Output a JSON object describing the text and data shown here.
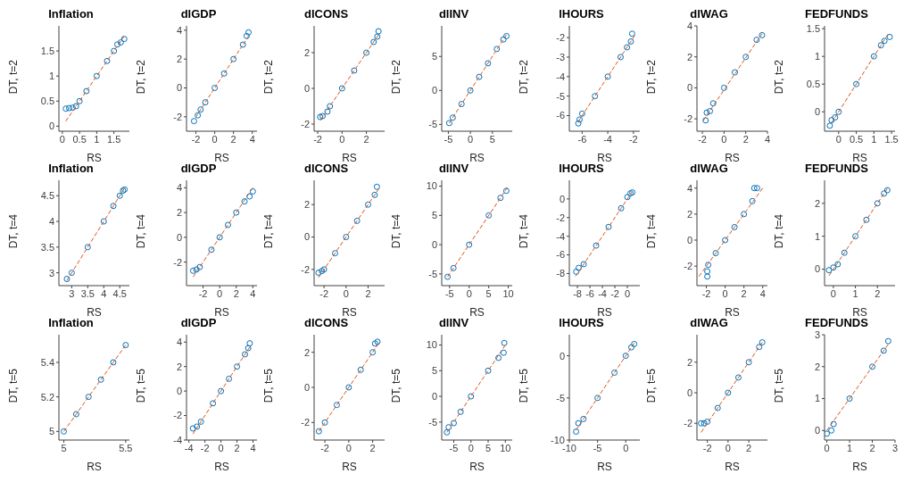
{
  "chart_data": [
    {
      "type": "scatter",
      "title": "Inflation",
      "xlabel": "RS",
      "ylabel": "DT, t=2",
      "xlim": [
        -0.1,
        1.95
      ],
      "ylim": [
        -0.1,
        2
      ],
      "xticks": [
        0,
        0.5,
        1,
        1.5
      ],
      "yticks": [
        0,
        0.5,
        1,
        1.5
      ],
      "marker": "circle",
      "series": [
        {
          "color": "#0072bd",
          "x": [
            0.1,
            0.2,
            0.3,
            0.4,
            0.5,
            0.7,
            1,
            1.3,
            1.5,
            1.6,
            1.7,
            1.8
          ],
          "values": [
            0.35,
            0.36,
            0.37,
            0.4,
            0.5,
            0.7,
            1,
            1.3,
            1.5,
            1.63,
            1.67,
            1.74
          ]
        },
        {
          "type": "line",
          "marker": "none",
          "line_style": "dashed",
          "color": "#d95319",
          "x": [
            0.1,
            1.8
          ],
          "values": [
            0.1,
            1.8
          ]
        }
      ]
    },
    {
      "type": "scatter",
      "title": "dlGDP",
      "xlabel": "RS",
      "ylabel": "DT, t=2",
      "xlim": [
        -3,
        4.5
      ],
      "ylim": [
        -3,
        4.3
      ],
      "xticks": [
        -2,
        0,
        2,
        4
      ],
      "yticks": [
        -2,
        0,
        2,
        4
      ],
      "marker": "circle",
      "series": [
        {
          "color": "#0072bd",
          "x": [
            -2.2,
            -1.8,
            -1.5,
            -1,
            0,
            1,
            2,
            3,
            3.4,
            3.6
          ],
          "values": [
            -2.3,
            -1.9,
            -1.5,
            -1,
            0,
            1,
            2,
            3,
            3.6,
            3.85
          ]
        },
        {
          "type": "line",
          "marker": "none",
          "line_style": "dashed",
          "color": "#d95319",
          "x": [
            -2,
            3.6
          ],
          "values": [
            -2,
            3.6
          ]
        }
      ]
    },
    {
      "type": "scatter",
      "title": "dlCONS",
      "xlabel": "RS",
      "ylabel": "DT, t=2",
      "xlim": [
        -2.3,
        3.5
      ],
      "ylim": [
        -2.4,
        3.5
      ],
      "xticks": [
        -2,
        0,
        2
      ],
      "yticks": [
        -2,
        0,
        2
      ],
      "marker": "circle",
      "series": [
        {
          "color": "#0072bd",
          "x": [
            -1.8,
            -1.6,
            -1.2,
            -1,
            0,
            1,
            2,
            2.6,
            2.9,
            3
          ],
          "values": [
            -1.6,
            -1.55,
            -1.3,
            -1,
            0,
            1,
            2,
            2.6,
            2.9,
            3.2
          ]
        },
        {
          "type": "line",
          "marker": "none",
          "line_style": "dashed",
          "color": "#d95319",
          "x": [
            -1.8,
            3
          ],
          "values": [
            -1.8,
            3
          ]
        }
      ]
    },
    {
      "type": "scatter",
      "title": "dlINV",
      "xlabel": "RS",
      "ylabel": "DT, t=2",
      "xlim": [
        -6.5,
        9.5
      ],
      "ylim": [
        -6,
        9.5
      ],
      "xticks": [
        -5,
        0,
        5
      ],
      "yticks": [
        -5,
        0,
        5
      ],
      "marker": "circle",
      "series": [
        {
          "color": "#0072bd",
          "x": [
            -4.8,
            -4,
            -2,
            0,
            2,
            4,
            6,
            7.5,
            8.2
          ],
          "values": [
            -4.8,
            -4,
            -2,
            0,
            2,
            4,
            6.1,
            7.5,
            8
          ]
        },
        {
          "type": "line",
          "marker": "none",
          "line_style": "dashed",
          "color": "#d95319",
          "x": [
            -4.8,
            8.2
          ],
          "values": [
            -4.8,
            8.2
          ]
        }
      ]
    },
    {
      "type": "scatter",
      "title": "lHOURS",
      "xlabel": "RS",
      "ylabel": "DT, t=2",
      "xlim": [
        -7,
        -1.5
      ],
      "ylim": [
        -6.8,
        -1.4
      ],
      "xticks": [
        -6,
        -4,
        -2
      ],
      "yticks": [
        -6,
        -5,
        -4,
        -3,
        -2
      ],
      "marker": "circle",
      "series": [
        {
          "color": "#0072bd",
          "x": [
            -6.3,
            -6.2,
            -6,
            -5,
            -4,
            -3,
            -2.5,
            -2.2,
            -2.1
          ],
          "values": [
            -6.4,
            -6.2,
            -5.9,
            -5,
            -4,
            -3,
            -2.5,
            -2.2,
            -1.8
          ]
        },
        {
          "type": "line",
          "marker": "none",
          "line_style": "dashed",
          "color": "#d95319",
          "x": [
            -6.3,
            -1.9
          ],
          "values": [
            -6.3,
            -1.9
          ]
        }
      ]
    },
    {
      "type": "scatter",
      "title": "dlWAG",
      "xlabel": "RS",
      "ylabel": "DT, t=2",
      "xlim": [
        -2.5,
        4
      ],
      "ylim": [
        -2.8,
        4
      ],
      "xticks": [
        -2,
        0,
        2,
        4
      ],
      "yticks": [
        -2,
        0,
        2,
        4
      ],
      "marker": "circle",
      "series": [
        {
          "color": "#0072bd",
          "x": [
            -1.7,
            -1.6,
            -1.3,
            -1,
            0,
            1,
            2,
            3,
            3.5
          ],
          "values": [
            -2.1,
            -1.6,
            -1.5,
            -1,
            0,
            1,
            2,
            3.1,
            3.4
          ]
        },
        {
          "type": "line",
          "marker": "none",
          "line_style": "dashed",
          "color": "#d95319",
          "x": [
            -1.9,
            3.5
          ],
          "values": [
            -2.1,
            3.5
          ]
        }
      ]
    },
    {
      "type": "scatter",
      "title": "FEDFUNDS",
      "xlabel": "RS",
      "ylabel": "DT, t=2",
      "xlim": [
        -0.4,
        1.6
      ],
      "ylim": [
        -0.35,
        1.55
      ],
      "xticks": [
        0,
        0.5,
        1,
        1.5
      ],
      "yticks": [
        0,
        0.5,
        1,
        1.5
      ],
      "marker": "circle",
      "series": [
        {
          "color": "#0072bd",
          "x": [
            -0.25,
            -0.2,
            -0.1,
            0,
            0.5,
            1,
            1.2,
            1.3,
            1.45
          ],
          "values": [
            -0.25,
            -0.15,
            -0.1,
            0,
            0.5,
            1,
            1.2,
            1.28,
            1.35
          ]
        },
        {
          "type": "line",
          "marker": "none",
          "line_style": "dashed",
          "color": "#d95319",
          "x": [
            -0.2,
            1.4
          ],
          "values": [
            -0.2,
            1.4
          ]
        }
      ]
    },
    {
      "type": "scatter",
      "title": "Inflation",
      "xlabel": "RS",
      "ylabel": "DT, t=4",
      "xlim": [
        2.6,
        4.8
      ],
      "ylim": [
        2.75,
        4.8
      ],
      "xticks": [
        3,
        3.5,
        4,
        4.5
      ],
      "yticks": [
        3,
        3.5,
        4,
        4.5
      ],
      "marker": "circle",
      "series": [
        {
          "color": "#0072bd",
          "x": [
            2.85,
            3,
            3.5,
            4,
            4.3,
            4.5,
            4.6,
            4.65
          ],
          "values": [
            2.88,
            3,
            3.5,
            4,
            4.3,
            4.5,
            4.6,
            4.62
          ]
        },
        {
          "type": "line",
          "marker": "none",
          "line_style": "dashed",
          "color": "#d95319",
          "x": [
            2.85,
            4.65
          ],
          "values": [
            2.85,
            4.65
          ]
        }
      ]
    },
    {
      "type": "scatter",
      "title": "dlGDP",
      "xlabel": "RS",
      "ylabel": "DT, t=4",
      "xlim": [
        -4,
        4.5
      ],
      "ylim": [
        -3.9,
        4.6
      ],
      "xticks": [
        -2,
        0,
        2,
        4
      ],
      "yticks": [
        -2,
        0,
        2,
        4
      ],
      "marker": "circle",
      "series": [
        {
          "color": "#0072bd",
          "x": [
            -3.2,
            -2.8,
            -2.4,
            -1,
            0,
            1,
            2,
            3,
            3.6,
            4
          ],
          "values": [
            -2.7,
            -2.6,
            -2.4,
            -1,
            0,
            1,
            2,
            2.9,
            3.3,
            3.7
          ]
        },
        {
          "type": "line",
          "marker": "none",
          "line_style": "dashed",
          "color": "#d95319",
          "x": [
            -3.2,
            4
          ],
          "values": [
            -3.2,
            4
          ]
        }
      ]
    },
    {
      "type": "scatter",
      "title": "dlCONS",
      "xlabel": "RS",
      "ylabel": "DT, t=4",
      "xlim": [
        -2.9,
        3.5
      ],
      "ylim": [
        -3,
        3.5
      ],
      "xticks": [
        -2,
        0,
        2
      ],
      "yticks": [
        -2,
        0,
        2
      ],
      "marker": "circle",
      "series": [
        {
          "color": "#0072bd",
          "x": [
            -2.5,
            -2.2,
            -2,
            -1,
            0,
            1,
            2,
            2.6,
            2.8
          ],
          "values": [
            -2.2,
            -2.1,
            -2,
            -1,
            0,
            1,
            2,
            2.6,
            3.1
          ]
        },
        {
          "type": "line",
          "marker": "none",
          "line_style": "dashed",
          "color": "#d95319",
          "x": [
            -2.5,
            3
          ],
          "values": [
            -2.5,
            3
          ]
        }
      ]
    },
    {
      "type": "scatter",
      "title": "dlINV",
      "xlabel": "RS",
      "ylabel": "DT, t=4",
      "xlim": [
        -7,
        11
      ],
      "ylim": [
        -7,
        11
      ],
      "xticks": [
        -5,
        0,
        5,
        10
      ],
      "yticks": [
        -5,
        0,
        5,
        10
      ],
      "marker": "circle",
      "series": [
        {
          "color": "#0072bd",
          "x": [
            -5.5,
            -4,
            0,
            5,
            8,
            9.5
          ],
          "values": [
            -5.5,
            -4,
            0,
            5,
            8,
            9.2
          ]
        },
        {
          "type": "line",
          "marker": "none",
          "line_style": "dashed",
          "color": "#d95319",
          "x": [
            -5.5,
            9.8
          ],
          "values": [
            -5.5,
            9.8
          ]
        }
      ]
    },
    {
      "type": "scatter",
      "title": "lHOURS",
      "xlabel": "RS",
      "ylabel": "DT, t=4",
      "xlim": [
        -9.3,
        2
      ],
      "ylim": [
        -9.3,
        2
      ],
      "xticks": [
        -8,
        -6,
        -4,
        -2,
        0
      ],
      "yticks": [
        -8,
        -6,
        -4,
        -2,
        0
      ],
      "marker": "circle",
      "series": [
        {
          "color": "#0072bd",
          "x": [
            -8.2,
            -7.8,
            -7,
            -5,
            -3,
            -1,
            0,
            0.5,
            0.8
          ],
          "values": [
            -7.8,
            -7.4,
            -7,
            -5,
            -3,
            -1,
            0.2,
            0.6,
            0.7
          ]
        },
        {
          "type": "line",
          "marker": "none",
          "line_style": "dashed",
          "color": "#d95319",
          "x": [
            -8.3,
            0.8
          ],
          "values": [
            -8.3,
            0.8
          ]
        }
      ]
    },
    {
      "type": "scatter",
      "title": "dlWAG",
      "xlabel": "RS",
      "ylabel": "DT, t=4",
      "xlim": [
        -3,
        4.5
      ],
      "ylim": [
        -3.5,
        4.6
      ],
      "xticks": [
        -2,
        0,
        2,
        4
      ],
      "yticks": [
        -2,
        0,
        2,
        4
      ],
      "marker": "circle",
      "series": [
        {
          "color": "#0072bd",
          "x": [
            -1.9,
            -1.9,
            -1.8,
            -1,
            0,
            1,
            2,
            2.9,
            3.1,
            3.4
          ],
          "values": [
            -2.8,
            -2.4,
            -1.9,
            -1,
            0,
            1,
            2,
            3,
            4,
            4
          ]
        },
        {
          "type": "line",
          "marker": "none",
          "line_style": "dashed",
          "color": "#d95319",
          "x": [
            -2.8,
            4
          ],
          "values": [
            -2.8,
            4
          ]
        }
      ]
    },
    {
      "type": "scatter",
      "title": "FEDFUNDS",
      "xlabel": "RS",
      "ylabel": "DT, t=4",
      "xlim": [
        -0.4,
        2.8
      ],
      "ylim": [
        -0.5,
        2.7
      ],
      "xticks": [
        0,
        1,
        2
      ],
      "yticks": [
        0,
        1,
        2
      ],
      "marker": "circle",
      "series": [
        {
          "color": "#0072bd",
          "x": [
            -0.2,
            0,
            0.2,
            0.5,
            1,
            1.5,
            2,
            2.3,
            2.45
          ],
          "values": [
            -0.03,
            0.05,
            0.15,
            0.5,
            1,
            1.5,
            2,
            2.3,
            2.4
          ]
        },
        {
          "type": "line",
          "marker": "none",
          "line_style": "dashed",
          "color": "#d95319",
          "x": [
            -0.2,
            2.45
          ],
          "values": [
            -0.2,
            2.45
          ]
        }
      ]
    },
    {
      "type": "scatter",
      "title": "Inflation",
      "xlabel": "RS",
      "ylabel": "DT, t=5",
      "xlim": [
        4.96,
        5.53
      ],
      "ylim": [
        4.95,
        5.56
      ],
      "xticks": [
        5,
        5.5
      ],
      "yticks": [
        5,
        5.2,
        5.4
      ],
      "marker": "circle",
      "series": [
        {
          "color": "#0072bd",
          "x": [
            5,
            5.1,
            5.2,
            5.3,
            5.4,
            5.5
          ],
          "values": [
            5,
            5.1,
            5.2,
            5.3,
            5.4,
            5.5
          ]
        },
        {
          "type": "line",
          "marker": "none",
          "line_style": "dashed",
          "color": "#d95319",
          "x": [
            5,
            5.5
          ],
          "values": [
            5,
            5.5
          ]
        }
      ]
    },
    {
      "type": "scatter",
      "title": "dlGDP",
      "xlabel": "RS",
      "ylabel": "DT, t=5",
      "xlim": [
        -4.3,
        4.5
      ],
      "ylim": [
        -4,
        4.6
      ],
      "xticks": [
        -4,
        -2,
        0,
        2,
        4
      ],
      "yticks": [
        -4,
        -2,
        0,
        2,
        4
      ],
      "marker": "circle",
      "series": [
        {
          "color": "#0072bd",
          "x": [
            -3.5,
            -3,
            -2.5,
            -1,
            0,
            1,
            2,
            3,
            3.4,
            3.6
          ],
          "values": [
            -3.05,
            -2.9,
            -2.5,
            -1,
            0,
            1,
            2,
            3,
            3.5,
            3.9
          ]
        },
        {
          "type": "line",
          "marker": "none",
          "line_style": "dashed",
          "color": "#d95319",
          "x": [
            -3.5,
            3.6
          ],
          "values": [
            -3.5,
            3.6
          ]
        }
      ]
    },
    {
      "type": "scatter",
      "title": "dlCONS",
      "xlabel": "RS",
      "ylabel": "DT, t=5",
      "xlim": [
        -2.9,
        3
      ],
      "ylim": [
        -3,
        3
      ],
      "xticks": [
        -2,
        0,
        2
      ],
      "yticks": [
        -2,
        0,
        2
      ],
      "marker": "circle",
      "series": [
        {
          "color": "#0072bd",
          "x": [
            -2.5,
            -2,
            -1,
            0,
            1,
            2,
            2.2,
            2.4
          ],
          "values": [
            -2.5,
            -2,
            -1,
            0,
            1,
            2,
            2.5,
            2.6
          ]
        },
        {
          "type": "line",
          "marker": "none",
          "line_style": "dashed",
          "color": "#d95319",
          "x": [
            -2.5,
            2.5
          ],
          "values": [
            -2.5,
            2.5
          ]
        }
      ]
    },
    {
      "type": "scatter",
      "title": "dlINV",
      "xlabel": "RS",
      "ylabel": "DT, t=5",
      "xlim": [
        -8.5,
        12
      ],
      "ylim": [
        -8.5,
        12
      ],
      "xticks": [
        -5,
        0,
        5,
        10
      ],
      "yticks": [
        -5,
        0,
        5,
        10
      ],
      "marker": "circle",
      "series": [
        {
          "color": "#0072bd",
          "x": [
            -7,
            -6.5,
            -5,
            -3,
            0,
            5,
            8,
            9.5,
            9.7
          ],
          "values": [
            -7,
            -6,
            -5.2,
            -3,
            0,
            5,
            7.5,
            8.5,
            10.4
          ]
        },
        {
          "type": "line",
          "marker": "none",
          "line_style": "dashed",
          "color": "#d95319",
          "x": [
            -7,
            10
          ],
          "values": [
            -7,
            10
          ]
        }
      ]
    },
    {
      "type": "scatter",
      "title": "lHOURS",
      "xlabel": "RS",
      "ylabel": "DT, t=5",
      "xlim": [
        -10,
        2.5
      ],
      "ylim": [
        -10,
        2.5
      ],
      "xticks": [
        -10,
        -5,
        0
      ],
      "yticks": [
        -10,
        -5,
        0
      ],
      "marker": "circle",
      "series": [
        {
          "color": "#0072bd",
          "x": [
            -8.8,
            -8.4,
            -7.5,
            -5,
            -2,
            0,
            1,
            1.5
          ],
          "values": [
            -9,
            -8,
            -7.5,
            -5,
            -2,
            0,
            1,
            1.4
          ]
        },
        {
          "type": "line",
          "marker": "none",
          "line_style": "dashed",
          "color": "#d95319",
          "x": [
            -8.8,
            1.5
          ],
          "values": [
            -8.8,
            1.5
          ]
        }
      ]
    },
    {
      "type": "scatter",
      "title": "dlWAG",
      "xlabel": "RS",
      "ylabel": "DT, t=5",
      "xlim": [
        -3,
        3.8
      ],
      "ylim": [
        -3.1,
        3.8
      ],
      "xticks": [
        -2,
        0,
        2
      ],
      "yticks": [
        -2,
        0,
        2
      ],
      "marker": "circle",
      "series": [
        {
          "color": "#0072bd",
          "x": [
            -2.6,
            -2.3,
            -2,
            -1,
            0,
            1,
            2,
            3,
            3.3
          ],
          "values": [
            -2,
            -2,
            -1.9,
            -1,
            0,
            1,
            2,
            3,
            3.3
          ]
        },
        {
          "type": "line",
          "marker": "none",
          "line_style": "dashed",
          "color": "#d95319",
          "x": [
            -2.6,
            3.3
          ],
          "values": [
            -2.6,
            3.3
          ]
        }
      ]
    },
    {
      "type": "scatter",
      "title": "FEDFUNDS",
      "xlabel": "RS",
      "ylabel": "DT, t=5",
      "xlim": [
        -0.1,
        3
      ],
      "ylim": [
        -0.3,
        3
      ],
      "xticks": [
        0,
        1,
        2,
        3
      ],
      "yticks": [
        0,
        1,
        2,
        3
      ],
      "marker": "circle",
      "series": [
        {
          "color": "#0072bd",
          "x": [
            0,
            0.2,
            0.3,
            1,
            2,
            2.5,
            2.7
          ],
          "values": [
            -0.1,
            0,
            0.2,
            1,
            2,
            2.5,
            2.8
          ]
        },
        {
          "type": "line",
          "marker": "none",
          "line_style": "dashed",
          "color": "#d95319",
          "x": [
            0,
            2.7
          ],
          "values": [
            0,
            2.7
          ]
        }
      ]
    }
  ]
}
